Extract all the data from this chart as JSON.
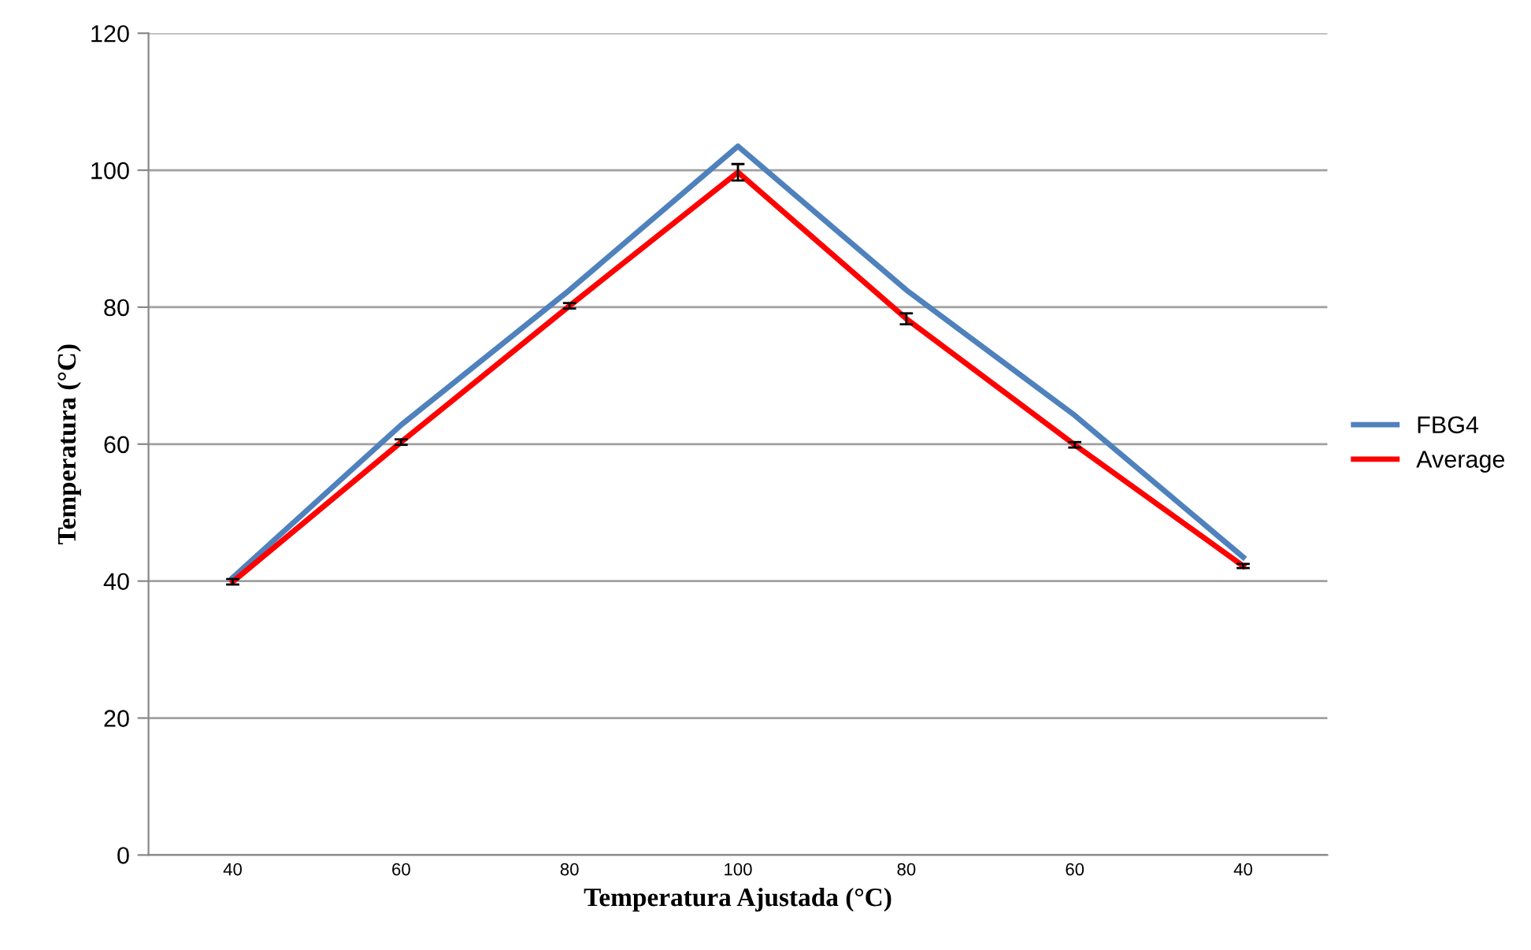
{
  "chart_data": {
    "type": "line",
    "xlabel": "Temperatura Ajustada (°C)",
    "ylabel": "Temperatura (°C)",
    "categories": [
      "40",
      "60",
      "80",
      "100",
      "80",
      "60",
      "40"
    ],
    "series": [
      {
        "name": "FBG4",
        "color": "#4f81bd",
        "values": [
          40.5,
          62.8,
          82.5,
          103.5,
          82.5,
          64.2,
          43.5
        ]
      },
      {
        "name": "Average",
        "color": "#ff0000",
        "values": [
          39.9,
          60.3,
          80.2,
          99.7,
          78.3,
          59.9,
          42.2
        ],
        "errors": [
          0.4,
          0.4,
          0.4,
          1.2,
          0.8,
          0.4,
          0.3
        ]
      }
    ],
    "ylim": [
      0,
      120
    ],
    "yticks": [
      0,
      20,
      40,
      60,
      80,
      100,
      120
    ],
    "grid": "y",
    "legend": "right",
    "marker": "none"
  }
}
